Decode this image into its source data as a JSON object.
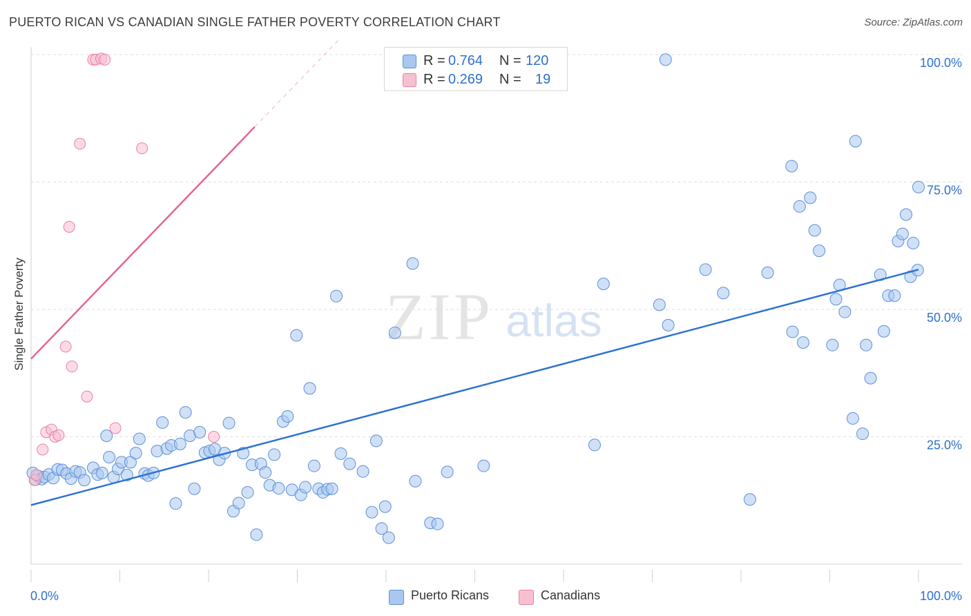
{
  "header": {
    "title": "PUERTO RICAN VS CANADIAN SINGLE FATHER POVERTY CORRELATION CHART",
    "source": "Source: ZipAtlas.com"
  },
  "watermark": {
    "zip": "ZIP",
    "atlas": "atlas"
  },
  "legend_top": {
    "rows": [
      {
        "r_key": "R =",
        "r_val": "0.764",
        "n_key": "N =",
        "n_val": "120",
        "color": "#a9c8f0"
      },
      {
        "r_key": "R =",
        "r_val": "0.269",
        "n_key": "N =",
        "n_val": "19",
        "color": "#f7c0d1"
      }
    ]
  },
  "legend_bottom": {
    "items": [
      "Puerto Ricans",
      "Canadians"
    ]
  },
  "colors": {
    "blue_fill": "#a9c8f0",
    "blue_stroke": "#5b8fd6",
    "blue_line": "#2e72d2",
    "pink_fill": "#f7c0d1",
    "pink_stroke": "#e8819f",
    "pink_line": "#e8648c",
    "tick_label": "#2e6fce",
    "grid": "#dddddd"
  },
  "chart_data": {
    "type": "scatter",
    "title": "PUERTO RICAN VS CANADIAN SINGLE FATHER POVERTY CORRELATION CHART",
    "xlabel": "",
    "ylabel": "Single Father Poverty",
    "xlim": [
      0,
      100
    ],
    "ylim": [
      0,
      103
    ],
    "x_tick_labels": [
      "0.0%",
      "100.0%"
    ],
    "y_ticks": [
      25,
      50,
      75,
      100
    ],
    "y_tick_labels": [
      "25.0%",
      "50.0%",
      "75.0%",
      "100.0%"
    ],
    "grid": "horizontal dashed",
    "legend_position": "top-center",
    "series": [
      {
        "name": "Puerto Ricans",
        "R": 0.764,
        "N": 120,
        "trend": {
          "x": [
            0,
            100
          ],
          "y": [
            11.6,
            57.8
          ]
        },
        "points": [
          [
            0.5,
            16.6
          ],
          [
            0.8,
            17.3
          ],
          [
            1.2,
            16.7
          ],
          [
            1.5,
            17.1
          ],
          [
            2.0,
            17.6
          ],
          [
            2.5,
            16.9
          ],
          [
            3.0,
            18.6
          ],
          [
            3.5,
            18.5
          ],
          [
            4.0,
            17.8
          ],
          [
            4.5,
            16.8
          ],
          [
            5.0,
            18.2
          ],
          [
            5.5,
            18.0
          ],
          [
            6.0,
            16.5
          ],
          [
            7.0,
            18.9
          ],
          [
            7.5,
            17.6
          ],
          [
            8.0,
            17.9
          ],
          [
            8.5,
            25.2
          ],
          [
            8.8,
            21.0
          ],
          [
            9.3,
            17.1
          ],
          [
            9.8,
            18.7
          ],
          [
            10.2,
            20.0
          ],
          [
            10.8,
            17.5
          ],
          [
            11.2,
            20.0
          ],
          [
            11.8,
            21.8
          ],
          [
            12.2,
            24.6
          ],
          [
            12.8,
            17.8
          ],
          [
            13.2,
            17.4
          ],
          [
            13.8,
            17.9
          ],
          [
            14.2,
            22.2
          ],
          [
            14.8,
            27.8
          ],
          [
            15.3,
            22.7
          ],
          [
            15.8,
            23.3
          ],
          [
            16.3,
            11.9
          ],
          [
            16.8,
            23.6
          ],
          [
            17.4,
            29.8
          ],
          [
            17.9,
            25.2
          ],
          [
            18.4,
            14.8
          ],
          [
            19.0,
            25.9
          ],
          [
            19.6,
            21.9
          ],
          [
            20.1,
            22.2
          ],
          [
            20.7,
            22.6
          ],
          [
            21.2,
            20.5
          ],
          [
            21.8,
            21.8
          ],
          [
            22.3,
            27.7
          ],
          [
            22.8,
            10.4
          ],
          [
            23.4,
            12.0
          ],
          [
            23.9,
            21.8
          ],
          [
            24.4,
            14.1
          ],
          [
            24.9,
            19.5
          ],
          [
            25.4,
            5.8
          ],
          [
            25.9,
            19.7
          ],
          [
            26.4,
            18.0
          ],
          [
            26.9,
            15.5
          ],
          [
            27.4,
            21.5
          ],
          [
            27.9,
            14.9
          ],
          [
            28.4,
            28.0
          ],
          [
            28.9,
            29.0
          ],
          [
            29.4,
            14.6
          ],
          [
            29.9,
            44.9
          ],
          [
            30.4,
            13.6
          ],
          [
            30.9,
            15.1
          ],
          [
            31.4,
            34.5
          ],
          [
            31.9,
            19.3
          ],
          [
            32.4,
            14.8
          ],
          [
            32.9,
            14.1
          ],
          [
            33.4,
            14.7
          ],
          [
            33.9,
            14.8
          ],
          [
            34.4,
            52.6
          ],
          [
            34.9,
            21.7
          ],
          [
            35.9,
            19.7
          ],
          [
            37.4,
            18.2
          ],
          [
            38.4,
            10.2
          ],
          [
            38.9,
            24.2
          ],
          [
            39.5,
            7.0
          ],
          [
            39.9,
            11.3
          ],
          [
            40.3,
            5.2
          ],
          [
            41.0,
            45.4
          ],
          [
            43.0,
            59.0
          ],
          [
            43.3,
            16.3
          ],
          [
            45.0,
            8.1
          ],
          [
            45.8,
            7.9
          ],
          [
            46.9,
            18.1
          ],
          [
            51.0,
            19.3
          ],
          [
            63.5,
            23.4
          ],
          [
            64.5,
            55.0
          ],
          [
            70.8,
            50.9
          ],
          [
            71.8,
            46.9
          ],
          [
            71.5,
            99.0
          ],
          [
            76.0,
            57.8
          ],
          [
            78.0,
            53.2
          ],
          [
            81.0,
            12.7
          ],
          [
            83.0,
            57.2
          ],
          [
            85.7,
            78.1
          ],
          [
            85.8,
            45.6
          ],
          [
            86.6,
            70.2
          ],
          [
            87.0,
            43.5
          ],
          [
            87.8,
            71.9
          ],
          [
            88.3,
            65.5
          ],
          [
            88.8,
            61.5
          ],
          [
            90.3,
            43.0
          ],
          [
            90.7,
            52.0
          ],
          [
            91.1,
            54.8
          ],
          [
            91.7,
            49.5
          ],
          [
            92.6,
            28.6
          ],
          [
            92.9,
            83.0
          ],
          [
            93.7,
            25.6
          ],
          [
            94.1,
            43.0
          ],
          [
            94.6,
            36.5
          ],
          [
            95.7,
            56.8
          ],
          [
            96.1,
            45.7
          ],
          [
            96.6,
            52.7
          ],
          [
            97.3,
            52.7
          ],
          [
            97.7,
            63.4
          ],
          [
            98.2,
            64.8
          ],
          [
            98.6,
            68.6
          ],
          [
            99.1,
            56.4
          ],
          [
            99.4,
            63.0
          ],
          [
            99.9,
            57.7
          ],
          [
            100.0,
            74.0
          ],
          [
            0.2,
            17.9
          ]
        ]
      },
      {
        "name": "Canadians",
        "R": 0.269,
        "N": 19,
        "trend": {
          "x": [
            0,
            25.2
          ],
          "y": [
            40.3,
            85.8
          ]
        },
        "points": [
          [
            0.4,
            16.5
          ],
          [
            0.6,
            17.5
          ],
          [
            1.3,
            22.5
          ],
          [
            1.7,
            25.9
          ],
          [
            2.3,
            26.4
          ],
          [
            2.7,
            25.0
          ],
          [
            3.1,
            25.3
          ],
          [
            3.9,
            42.7
          ],
          [
            4.3,
            66.2
          ],
          [
            4.6,
            38.8
          ],
          [
            5.5,
            82.5
          ],
          [
            6.3,
            32.9
          ],
          [
            7.0,
            99.0
          ],
          [
            7.3,
            99.0
          ],
          [
            7.9,
            99.2
          ],
          [
            8.3,
            99.0
          ],
          [
            9.5,
            26.7
          ],
          [
            12.5,
            81.6
          ],
          [
            20.6,
            25.0
          ]
        ]
      }
    ]
  }
}
